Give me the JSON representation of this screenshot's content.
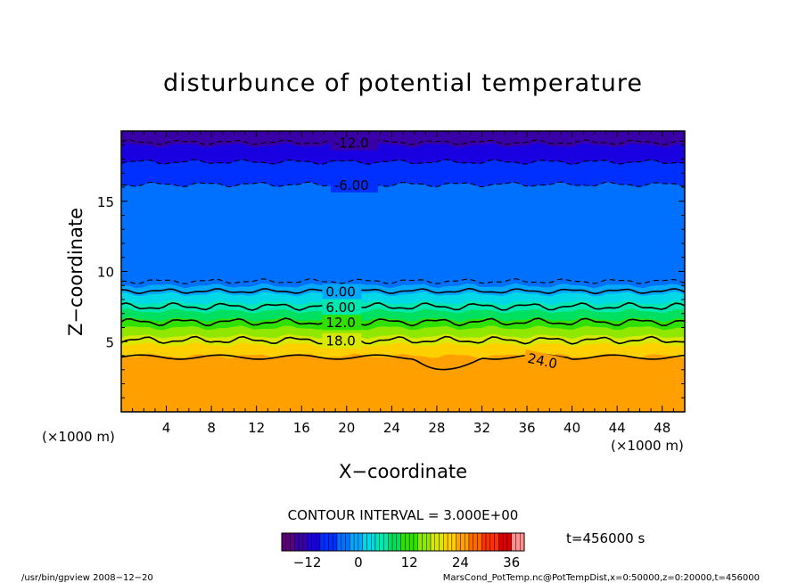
{
  "chart_data": {
    "type": "contour",
    "title": "disturbunce of potential temperature",
    "xlabel": "X−coordinate",
    "ylabel": "Z−coordinate",
    "x_unit_label_left": "(×1000 m)",
    "x_unit_label_right": "(×1000 m)",
    "xlim": [
      0,
      50
    ],
    "ylim": [
      0,
      20
    ],
    "x_ticks": [
      4,
      8,
      12,
      16,
      20,
      24,
      28,
      32,
      36,
      40,
      44,
      48
    ],
    "y_ticks": [
      5,
      10,
      15
    ],
    "contour_interval_text": "CONTOUR INTERVAL = 3.000E+00",
    "time_text": "t=456000 s",
    "colorbar": {
      "min": -18,
      "max": 39,
      "ticks": [
        -12,
        0,
        12,
        24,
        36
      ],
      "colors": [
        "#5a0078",
        "#3a00a8",
        "#1800e0",
        "#0030ff",
        "#0070ff",
        "#00a8ff",
        "#00d8e8",
        "#00e8b0",
        "#00e060",
        "#30e000",
        "#90e800",
        "#d8e800",
        "#ffd000",
        "#ffa000",
        "#ff6800",
        "#ff3000",
        "#e00000",
        "#ff9090"
      ]
    },
    "contours": [
      {
        "value": -12,
        "label": "-12.0",
        "z": 19.2,
        "style": "dashed"
      },
      {
        "value": -9,
        "label": "",
        "z": 17.8,
        "style": "dashed"
      },
      {
        "value": -6,
        "label": "-6.00",
        "z": 16.2,
        "style": "dashed"
      },
      {
        "value": -3,
        "label": "",
        "z": 9.3,
        "style": "dashed"
      },
      {
        "value": 0,
        "label": "0.00",
        "z": 8.6,
        "style": "solid"
      },
      {
        "value": 6,
        "label": "6.00",
        "z": 7.5,
        "style": "solid"
      },
      {
        "value": 12,
        "label": "12.0",
        "z": 6.4,
        "style": "solid"
      },
      {
        "value": 18,
        "label": "18.0",
        "z": 5.1,
        "style": "solid"
      },
      {
        "value": 24,
        "label": "24.0",
        "z": 3.9,
        "style": "solid"
      }
    ],
    "value_bands": [
      {
        "z_from": 0,
        "z_to": 4.0,
        "value": 24
      },
      {
        "z_from": 4.0,
        "z_to": 4.8,
        "value": 21
      },
      {
        "z_from": 4.8,
        "z_to": 5.4,
        "value": 18
      },
      {
        "z_from": 5.4,
        "z_to": 6.0,
        "value": 15
      },
      {
        "z_from": 6.0,
        "z_to": 6.6,
        "value": 12
      },
      {
        "z_from": 6.6,
        "z_to": 7.2,
        "value": 9
      },
      {
        "z_from": 7.2,
        "z_to": 7.8,
        "value": 6
      },
      {
        "z_from": 7.8,
        "z_to": 8.4,
        "value": 3
      },
      {
        "z_from": 8.4,
        "z_to": 9.0,
        "value": 0
      },
      {
        "z_from": 9.0,
        "z_to": 11.0,
        "value": -3
      },
      {
        "z_from": 11.0,
        "z_to": 16.2,
        "value": -4.5
      },
      {
        "z_from": 16.2,
        "z_to": 17.8,
        "value": -7.5
      },
      {
        "z_from": 17.8,
        "z_to": 19.0,
        "value": -10.5
      },
      {
        "z_from": 19.0,
        "z_to": 20.0,
        "value": -13.5
      }
    ]
  },
  "footer": {
    "left": "/usr/bin/gpview   2008−12−20",
    "right": "MarsCond_PotTemp.nc@PotTempDist,x=0:50000,z=0:20000,t=456000"
  }
}
